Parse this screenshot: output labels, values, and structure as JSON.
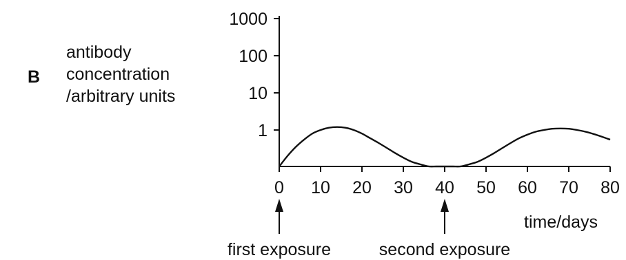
{
  "panel_label": "B",
  "ylabel_lines": [
    "antibody",
    "concentration",
    "/arbitrary units"
  ],
  "xlabel": "time/days",
  "annotations": [
    {
      "text": "first exposure",
      "x": 0
    },
    {
      "text": "second exposure",
      "x": 40
    }
  ],
  "chart_data": {
    "type": "line",
    "title": "",
    "xlabel": "time/days",
    "ylabel": "antibody concentration /arbitrary units",
    "x_ticks": [
      0,
      10,
      20,
      30,
      40,
      50,
      60,
      70,
      80
    ],
    "y_ticks": [
      1,
      10,
      100,
      1000
    ],
    "y_scale": "log",
    "xlim": [
      0,
      80
    ],
    "grid": false,
    "series": [
      {
        "x": [
          0,
          2,
          4,
          6,
          8,
          10,
          12,
          14,
          16,
          18,
          20,
          22,
          24,
          26,
          28,
          30,
          32,
          34,
          36,
          38,
          40,
          42,
          44,
          46,
          48,
          50,
          52,
          54,
          56,
          58,
          60,
          62,
          64,
          66,
          68,
          70,
          72,
          74,
          76,
          78,
          80
        ],
        "y": [
          0.1,
          0.2,
          0.35,
          0.55,
          0.8,
          1.0,
          1.15,
          1.2,
          1.15,
          1.0,
          0.8,
          0.6,
          0.45,
          0.33,
          0.24,
          0.18,
          0.14,
          0.12,
          0.105,
          0.1,
          0.1,
          0.1,
          0.105,
          0.12,
          0.14,
          0.18,
          0.24,
          0.33,
          0.45,
          0.6,
          0.75,
          0.9,
          1.0,
          1.08,
          1.1,
          1.08,
          1.0,
          0.9,
          0.78,
          0.66,
          0.55
        ]
      }
    ]
  }
}
